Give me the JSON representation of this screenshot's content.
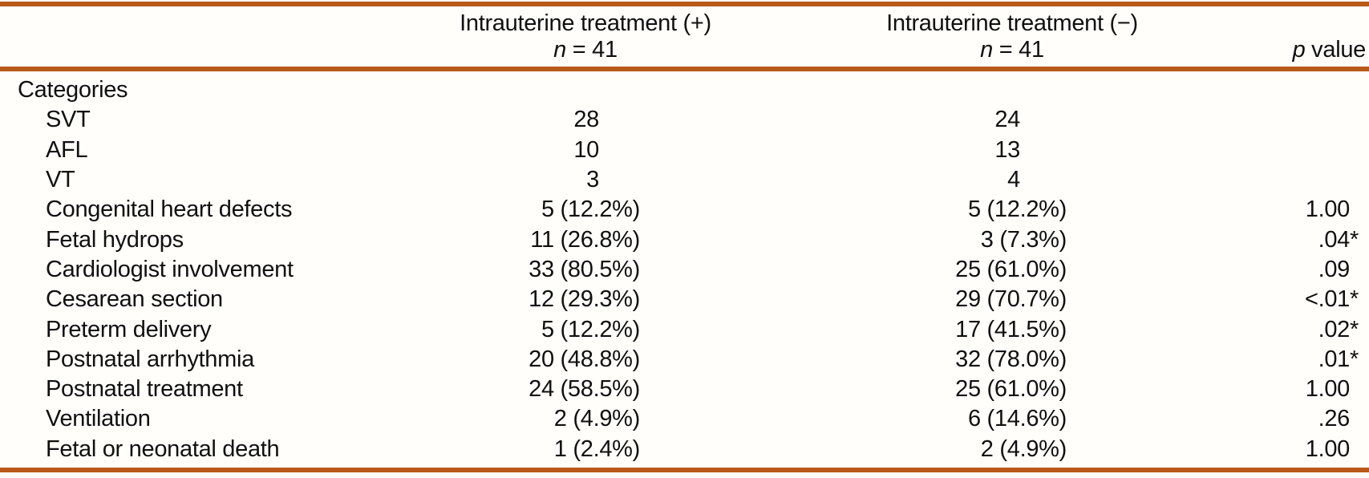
{
  "colors": {
    "rule": "#b95a19",
    "background": "#fffefb",
    "text": "#101010"
  },
  "header": {
    "col_treatment_positive": {
      "title": "Intrauterine treatment (+)",
      "subtitle": "n = 41"
    },
    "col_treatment_negative": {
      "title": "Intrauterine treatment (−)",
      "subtitle": "n = 41"
    },
    "p_value_label": "p value"
  },
  "rows": [
    {
      "label": "Categories",
      "indent": false,
      "c1": "",
      "c2": "",
      "p": ""
    },
    {
      "label": "SVT",
      "indent": true,
      "c1": "28",
      "c2": "24",
      "p": ""
    },
    {
      "label": "AFL",
      "indent": true,
      "c1": "10",
      "c2": "13",
      "p": ""
    },
    {
      "label": "VT",
      "indent": true,
      "c1": "3",
      "c2": "4",
      "p": ""
    },
    {
      "label": "Congenital heart defects",
      "indent": true,
      "c1": "5 (12.2%)",
      "c2": "5 (12.2%)",
      "p": "1.00"
    },
    {
      "label": "Fetal hydrops",
      "indent": true,
      "c1": "11 (26.8%)",
      "c2": "3 (7.3%)",
      "p": ".04*"
    },
    {
      "label": "Cardiologist involvement",
      "indent": true,
      "c1": "33 (80.5%)",
      "c2": "25 (61.0%)",
      "p": ".09"
    },
    {
      "label": "Cesarean section",
      "indent": true,
      "c1": "12 (29.3%)",
      "c2": "29 (70.7%)",
      "p": "<.01*"
    },
    {
      "label": "Preterm delivery",
      "indent": true,
      "c1": "5 (12.2%)",
      "c2": "17 (41.5%)",
      "p": ".02*"
    },
    {
      "label": "Postnatal arrhythmia",
      "indent": true,
      "c1": "20 (48.8%)",
      "c2": "32 (78.0%)",
      "p": ".01*"
    },
    {
      "label": "Postnatal treatment",
      "indent": true,
      "c1": "24 (58.5%)",
      "c2": "25 (61.0%)",
      "p": "1.00"
    },
    {
      "label": "Ventilation",
      "indent": true,
      "c1": "2 (4.9%)",
      "c2": "6 (14.6%)",
      "p": ".26"
    },
    {
      "label": "Fetal or neonatal death",
      "indent": true,
      "c1": "1 (2.4%)",
      "c2": "2 (4.9%)",
      "p": "1.00"
    }
  ]
}
